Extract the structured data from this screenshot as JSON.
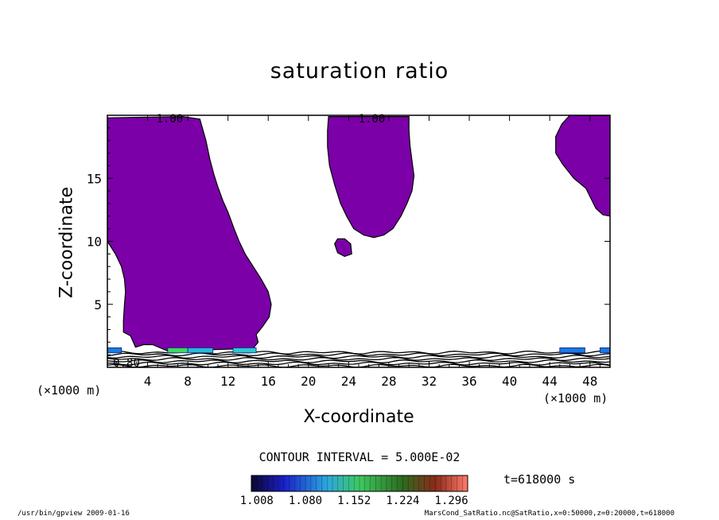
{
  "chart_data": {
    "type": "contour",
    "title": "saturation ratio",
    "xlabel": "X-coordinate",
    "ylabel": "Z-coordinate",
    "x_unit": "(×1000 m)",
    "y_unit": "(×1000 m)",
    "xlim": [
      0,
      50
    ],
    "ylim": [
      0,
      20
    ],
    "x_ticks": [
      "4",
      "8",
      "12",
      "16",
      "20",
      "24",
      "28",
      "32",
      "36",
      "40",
      "44",
      "48"
    ],
    "y_ticks": [
      "5",
      "10",
      "15"
    ],
    "contour_labels": [
      "1.00",
      "1.00",
      "0.80"
    ],
    "contour_interval": "CONTOUR INTERVAL = 5.000E-02",
    "colorbar_ticks": [
      "1.008",
      "1.080",
      "1.152",
      "1.224",
      "1.296"
    ],
    "colorbar_range": [
      1.0,
      1.32
    ],
    "saturated_color": "#7b00a8",
    "time_label": "t=618000 s",
    "regions": [
      {
        "name": "left-plume",
        "points": [
          [
            0,
            19.8
          ],
          [
            7.5,
            19.9
          ],
          [
            9.2,
            19.7
          ],
          [
            9.8,
            18
          ],
          [
            10.2,
            16.5
          ],
          [
            10.6,
            15.3
          ],
          [
            11,
            14.3
          ],
          [
            11.5,
            13.2
          ],
          [
            12,
            12.3
          ],
          [
            12.6,
            11
          ],
          [
            13.1,
            10
          ],
          [
            13.7,
            9
          ],
          [
            14.5,
            8
          ],
          [
            15.3,
            7
          ],
          [
            16,
            6
          ],
          [
            16.3,
            5
          ],
          [
            16.1,
            4
          ],
          [
            15.4,
            3.2
          ],
          [
            14.8,
            2.6
          ],
          [
            15,
            2
          ],
          [
            14.5,
            1.5
          ],
          [
            6,
            1.3
          ],
          [
            4.5,
            1.8
          ],
          [
            3.6,
            1.8
          ],
          [
            2.8,
            1.6
          ],
          [
            2.3,
            2.5
          ],
          [
            1.6,
            2.8
          ],
          [
            1.6,
            3.7
          ],
          [
            1.7,
            5
          ],
          [
            1.8,
            6
          ],
          [
            1.7,
            7
          ],
          [
            1.4,
            8
          ],
          [
            0.8,
            9
          ],
          [
            0,
            10
          ]
        ]
      },
      {
        "name": "middle-lobe",
        "points": [
          [
            22,
            19.9
          ],
          [
            30,
            19.9
          ],
          [
            30,
            18.8
          ],
          [
            30.1,
            17.6
          ],
          [
            30.3,
            16.4
          ],
          [
            30.5,
            15.2
          ],
          [
            30.3,
            14
          ],
          [
            29.8,
            13
          ],
          [
            29.2,
            12
          ],
          [
            28.4,
            11
          ],
          [
            27.5,
            10.5
          ],
          [
            26.5,
            10.3
          ],
          [
            25.5,
            10.5
          ],
          [
            24.5,
            11
          ],
          [
            23.8,
            12
          ],
          [
            23.2,
            13
          ],
          [
            22.6,
            14.5
          ],
          [
            22.1,
            16
          ],
          [
            21.9,
            17.5
          ],
          [
            21.9,
            18.8
          ]
        ]
      },
      {
        "name": "small-blob",
        "points": [
          [
            22.9,
            10.2
          ],
          [
            23.6,
            10.2
          ],
          [
            24.2,
            9.8
          ],
          [
            24.3,
            9
          ],
          [
            23.6,
            8.8
          ],
          [
            22.9,
            9.1
          ],
          [
            22.6,
            9.8
          ]
        ]
      },
      {
        "name": "right-top",
        "points": [
          [
            50,
            20
          ],
          [
            46,
            20
          ],
          [
            45.2,
            19.3
          ],
          [
            44.6,
            18.3
          ],
          [
            44.6,
            17
          ],
          [
            45.3,
            16.1
          ],
          [
            46.4,
            15
          ],
          [
            47.6,
            14.2
          ],
          [
            48.6,
            12.6
          ],
          [
            49.3,
            12.1
          ],
          [
            50,
            12
          ]
        ]
      }
    ]
  },
  "footer": {
    "left": "/usr/bin/gpview   2009-01-16",
    "right": "MarsCond_SatRatio.nc@SatRatio,x=0:50000,z=0:20000,t=618000"
  }
}
